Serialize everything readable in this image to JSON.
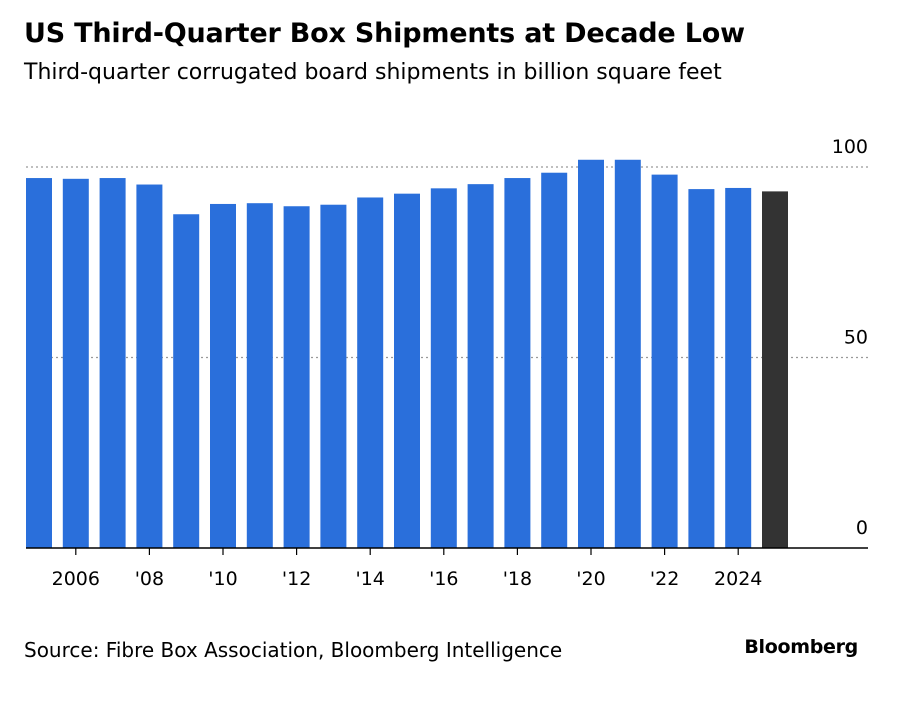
{
  "header": {
    "title": "US Third-Quarter Box Shipments at Decade Low",
    "subtitle": "Third-quarter corrugated board shipments in billion square feet"
  },
  "footer": {
    "source": "Source: Fibre Box Association, Bloomberg Intelligence",
    "brand": "Bloomberg"
  },
  "colors": {
    "bar": "#2a6fdb",
    "bar_latest": "#333333",
    "axis": "#000000",
    "grid": "#999999"
  },
  "chart_data": {
    "type": "bar",
    "title": "US Third-Quarter Box Shipments at Decade Low",
    "subtitle": "Third-quarter corrugated board shipments in billion square feet",
    "categories": [
      "2005",
      "2006",
      "2007",
      "2008",
      "2009",
      "2010",
      "2011",
      "2012",
      "2013",
      "2014",
      "2015",
      "2016",
      "2017",
      "2018",
      "2019",
      "2020",
      "2021",
      "2022",
      "2023",
      "2024",
      "2025"
    ],
    "values": [
      97.1,
      96.9,
      97.1,
      95.4,
      87.6,
      90.3,
      90.5,
      89.7,
      90.1,
      92.0,
      93.0,
      94.4,
      95.5,
      97.1,
      98.5,
      101.9,
      101.9,
      98.0,
      94.2,
      94.5,
      93.6
    ],
    "highlight_index": 20,
    "ylim": [
      0,
      100
    ],
    "yticks": [
      0,
      50,
      100
    ],
    "ytick_labels": [
      "0",
      "50",
      "100"
    ],
    "xtick_labels": [
      {
        "index": 1,
        "label": "2006"
      },
      {
        "index": 3,
        "label": "'08"
      },
      {
        "index": 5,
        "label": "'10"
      },
      {
        "index": 7,
        "label": "'12"
      },
      {
        "index": 9,
        "label": "'14"
      },
      {
        "index": 11,
        "label": "'16"
      },
      {
        "index": 13,
        "label": "'18"
      },
      {
        "index": 15,
        "label": "'20"
      },
      {
        "index": 17,
        "label": "'22"
      },
      {
        "index": 19,
        "label": "2024"
      }
    ],
    "grid": true,
    "yaxis_position": "right",
    "xlabel": "",
    "ylabel": ""
  }
}
